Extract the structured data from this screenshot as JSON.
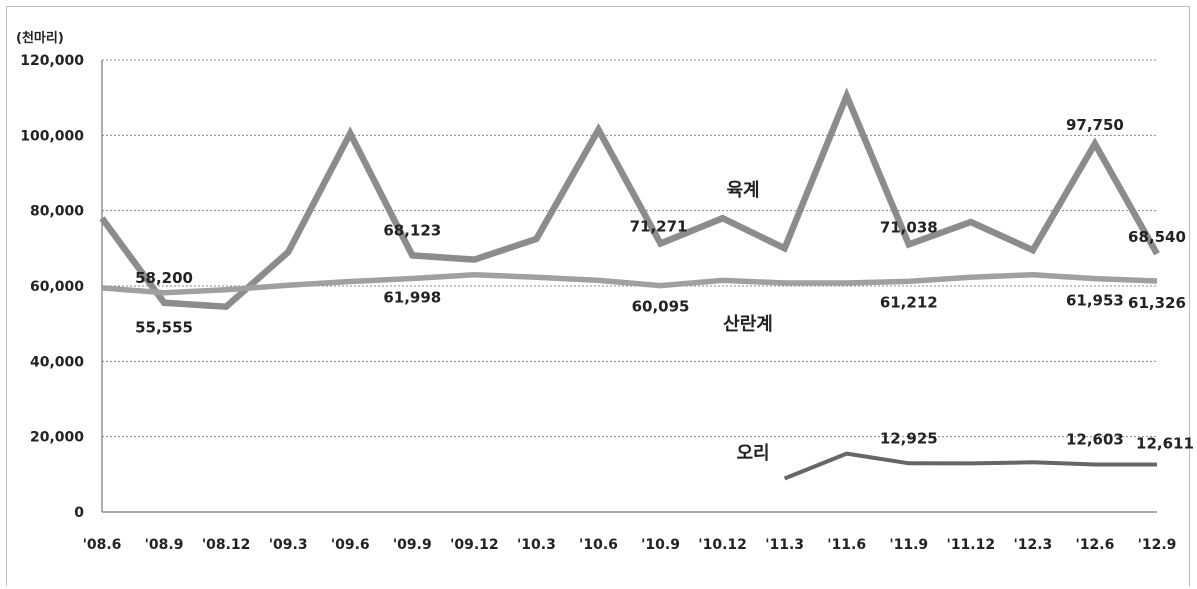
{
  "chart_data": {
    "type": "line",
    "unit_label": "(천마리)",
    "categories": [
      "'08.6",
      "'08.9",
      "'08.12",
      "'09.3",
      "'09.6",
      "'09.9",
      "'09.12",
      "'10.3",
      "'10.6",
      "'10.9",
      "'10.12",
      "'11.3",
      "'11.6",
      "'11.9",
      "'11.12",
      "'12.3",
      "'12.6",
      "'12.9"
    ],
    "ylim": [
      0,
      120000
    ],
    "yticks": [
      "0",
      "20,000",
      "40,000",
      "60,000",
      "80,000",
      "100,000",
      "120,000"
    ],
    "grid": true,
    "series": [
      {
        "name": "육계",
        "color": "#8c8c8c",
        "values": [
          78000,
          55555,
          54500,
          69000,
          100500,
          68123,
          67000,
          72500,
          101500,
          71271,
          78000,
          70000,
          110500,
          71038,
          77000,
          69500,
          97750,
          68540
        ]
      },
      {
        "name": "산란계",
        "color": "#a0a0a0",
        "values": [
          59500,
          58200,
          59000,
          60200,
          61200,
          61998,
          63000,
          62300,
          61500,
          60095,
          61500,
          60800,
          60800,
          61212,
          62300,
          63000,
          61953,
          61326
        ]
      },
      {
        "name": "오리",
        "color": "#666666",
        "values": [
          null,
          null,
          null,
          null,
          null,
          null,
          null,
          null,
          null,
          null,
          null,
          8900,
          15500,
          12925,
          12900,
          13200,
          12603,
          12611
        ]
      }
    ],
    "data_labels": [
      {
        "text": "58,200",
        "series": 1,
        "index": 1
      },
      {
        "text": "55,555",
        "series": 0,
        "index": 1
      },
      {
        "text": "68,123",
        "series": 0,
        "index": 5
      },
      {
        "text": "61,998",
        "series": 1,
        "index": 5
      },
      {
        "text": "71,271",
        "series": 0,
        "index": 9
      },
      {
        "text": "60,095",
        "series": 1,
        "index": 9
      },
      {
        "text": "71,038",
        "series": 0,
        "index": 13
      },
      {
        "text": "61,212",
        "series": 1,
        "index": 13
      },
      {
        "text": "97,750",
        "series": 0,
        "index": 16
      },
      {
        "text": "61,953",
        "series": 1,
        "index": 16
      },
      {
        "text": "68,540",
        "series": 0,
        "index": 17
      },
      {
        "text": "61,326",
        "series": 1,
        "index": 17
      },
      {
        "text": "12,925",
        "series": 2,
        "index": 13
      },
      {
        "text": "12,603",
        "series": 2,
        "index": 16
      },
      {
        "text": "12,611",
        "series": 2,
        "index": 17
      }
    ]
  }
}
